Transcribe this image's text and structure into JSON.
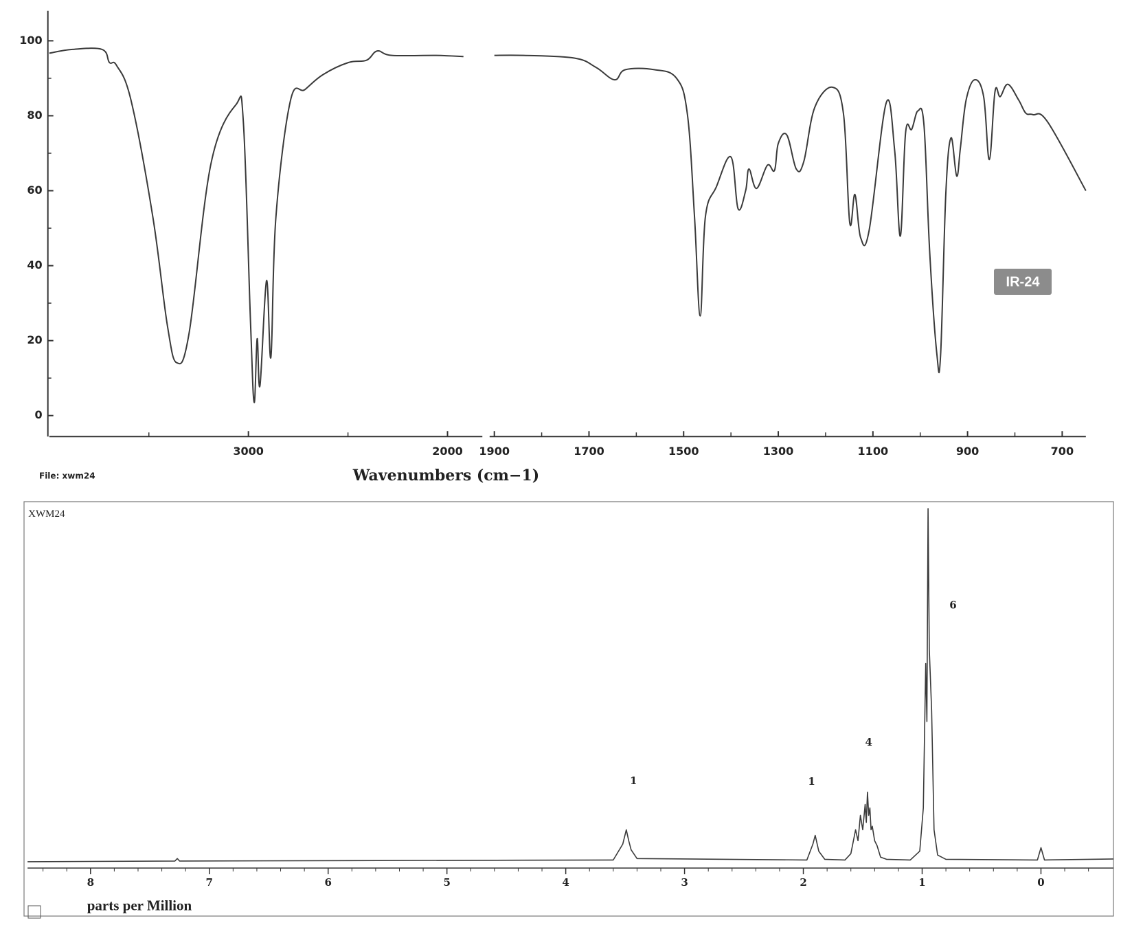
{
  "file_label": "File: xwm24",
  "badge": "IR-24",
  "chart_data": [
    {
      "type": "line",
      "xlabel": "Wavenumbers (cm−1)",
      "xlim": [
        [
          4000,
          1825
        ],
        [
          1910,
          650
        ]
      ],
      "xticks": [
        3000,
        2000,
        1900,
        1700,
        1500,
        1300,
        1100,
        900,
        700
      ],
      "xticks_minor": [
        3500,
        2500,
        1800,
        1600,
        1400,
        1200,
        1000,
        800
      ],
      "ylim": [
        -5.6,
        108
      ],
      "yticks": [
        0,
        20,
        40,
        60,
        80,
        100
      ],
      "yticks_minor": [
        10,
        30,
        50,
        70,
        90
      ],
      "series": [
        {
          "color": "#3a3a3a",
          "x": [
            4000,
            3884,
            3735,
            3698,
            3662,
            3589,
            3480,
            3407,
            3360,
            3298,
            3189,
            3062,
            3025,
            2989,
            2971,
            2956,
            2942,
            2909,
            2887,
            2862,
            2789,
            2716,
            2625,
            2498,
            2407,
            2353,
            2280,
            2062,
            1920,
            1900,
            1838,
            1731,
            1685,
            1646,
            1623,
            1562,
            1515,
            1492,
            1477,
            1465,
            1454,
            1431,
            1400,
            1385,
            1369,
            1362,
            1346,
            1323,
            1308,
            1300,
            1282,
            1262,
            1246,
            1223,
            1185,
            1162,
            1149,
            1138,
            1126,
            1108,
            1072,
            1054,
            1042,
            1031,
            1018,
            1005,
            992,
            980,
            965,
            957,
            946,
            935,
            923,
            915,
            903,
            885,
            866,
            854,
            842,
            831,
            815,
            792,
            777,
            762,
            731,
            650
          ],
          "values": [
            96.7,
            97.7,
            97.7,
            94.2,
            93.4,
            84,
            53,
            24,
            14.1,
            22,
            67,
            83,
            78,
            24,
            3.5,
            20.5,
            8,
            36,
            15.6,
            53,
            84,
            87,
            91,
            94.2,
            94.8,
            97.3,
            96.1,
            96.1,
            95.8,
            96.1,
            96.1,
            95.4,
            92.9,
            89.6,
            92.3,
            92.3,
            90,
            80.3,
            53,
            26.6,
            53,
            61,
            69,
            55.2,
            60,
            65.8,
            60.6,
            66.8,
            65.4,
            72.6,
            74.9,
            65.8,
            67.8,
            82.2,
            87.6,
            80.3,
            51.4,
            59,
            47.5,
            49.4,
            83.4,
            70.7,
            47.9,
            75.5,
            76.4,
            81.3,
            77.4,
            43.6,
            16.6,
            16,
            59,
            74.1,
            63.9,
            71.6,
            84.2,
            89.6,
            85.1,
            68.3,
            86.5,
            85.1,
            88.4,
            84.2,
            80.7,
            80.3,
            78.4,
            60
          ]
        }
      ]
    },
    {
      "type": "line",
      "title": "XWM24",
      "xlabel": "parts per Million",
      "xlim": [
        8.53,
        -0.61
      ],
      "xticks": [
        8,
        7,
        6,
        5,
        4,
        3,
        2,
        1,
        0
      ],
      "xticks_minor": [
        8.4,
        8.2,
        7.8,
        7.6,
        7.4,
        7.2,
        6.8,
        6.6,
        6.4,
        6.2,
        5.8,
        5.6,
        5.4,
        5.2,
        4.8,
        4.6,
        4.4,
        4.2,
        3.8,
        3.6,
        3.4,
        3.2,
        2.8,
        2.6,
        2.4,
        2.2,
        1.8,
        1.6,
        1.4,
        1.2,
        0.8,
        0.6,
        0.4,
        0.2,
        -0.2,
        -0.4
      ],
      "ylim": [
        -2.3,
        102
      ],
      "annotations": [
        {
          "text": "1",
          "x": 3.43,
          "y": 22.4
        },
        {
          "text": "1",
          "x": 1.93,
          "y": 22.2
        },
        {
          "text": "4",
          "x": 1.45,
          "y": 33.3
        },
        {
          "text": "6",
          "x": 0.74,
          "y": 72.3
        }
      ],
      "series": [
        {
          "color": "#3a3a3a",
          "x": [
            8.53,
            7.29,
            7.27,
            7.25,
            3.6,
            3.52,
            3.49,
            3.47,
            3.45,
            3.4,
            1.97,
            1.92,
            1.9,
            1.87,
            1.82,
            1.65,
            1.6,
            1.56,
            1.54,
            1.52,
            1.5,
            1.48,
            1.47,
            1.46,
            1.45,
            1.44,
            1.43,
            1.42,
            1.4,
            1.38,
            1.35,
            1.3,
            1.1,
            1.02,
            0.99,
            0.97,
            0.96,
            0.95,
            0.94,
            0.92,
            0.9,
            0.87,
            0.8,
            0.03,
            0,
            -0.03,
            -0.61
          ],
          "values": [
            -0.5,
            -0.3,
            0.4,
            -0.3,
            0,
            4.5,
            8.6,
            5.5,
            2.9,
            0.4,
            0,
            4.5,
            7,
            2.5,
            0.2,
            0,
            1.8,
            8.6,
            5.5,
            12.7,
            8.6,
            15.8,
            10.7,
            19.3,
            12.7,
            14.8,
            8.6,
            9.6,
            5.5,
            4.1,
            0.8,
            0.2,
            0,
            2.5,
            14.8,
            55.9,
            39.4,
            100,
            60,
            42.5,
            8.6,
            1.4,
            0.2,
            0,
            3.5,
            0,
            0.3
          ]
        }
      ]
    }
  ]
}
